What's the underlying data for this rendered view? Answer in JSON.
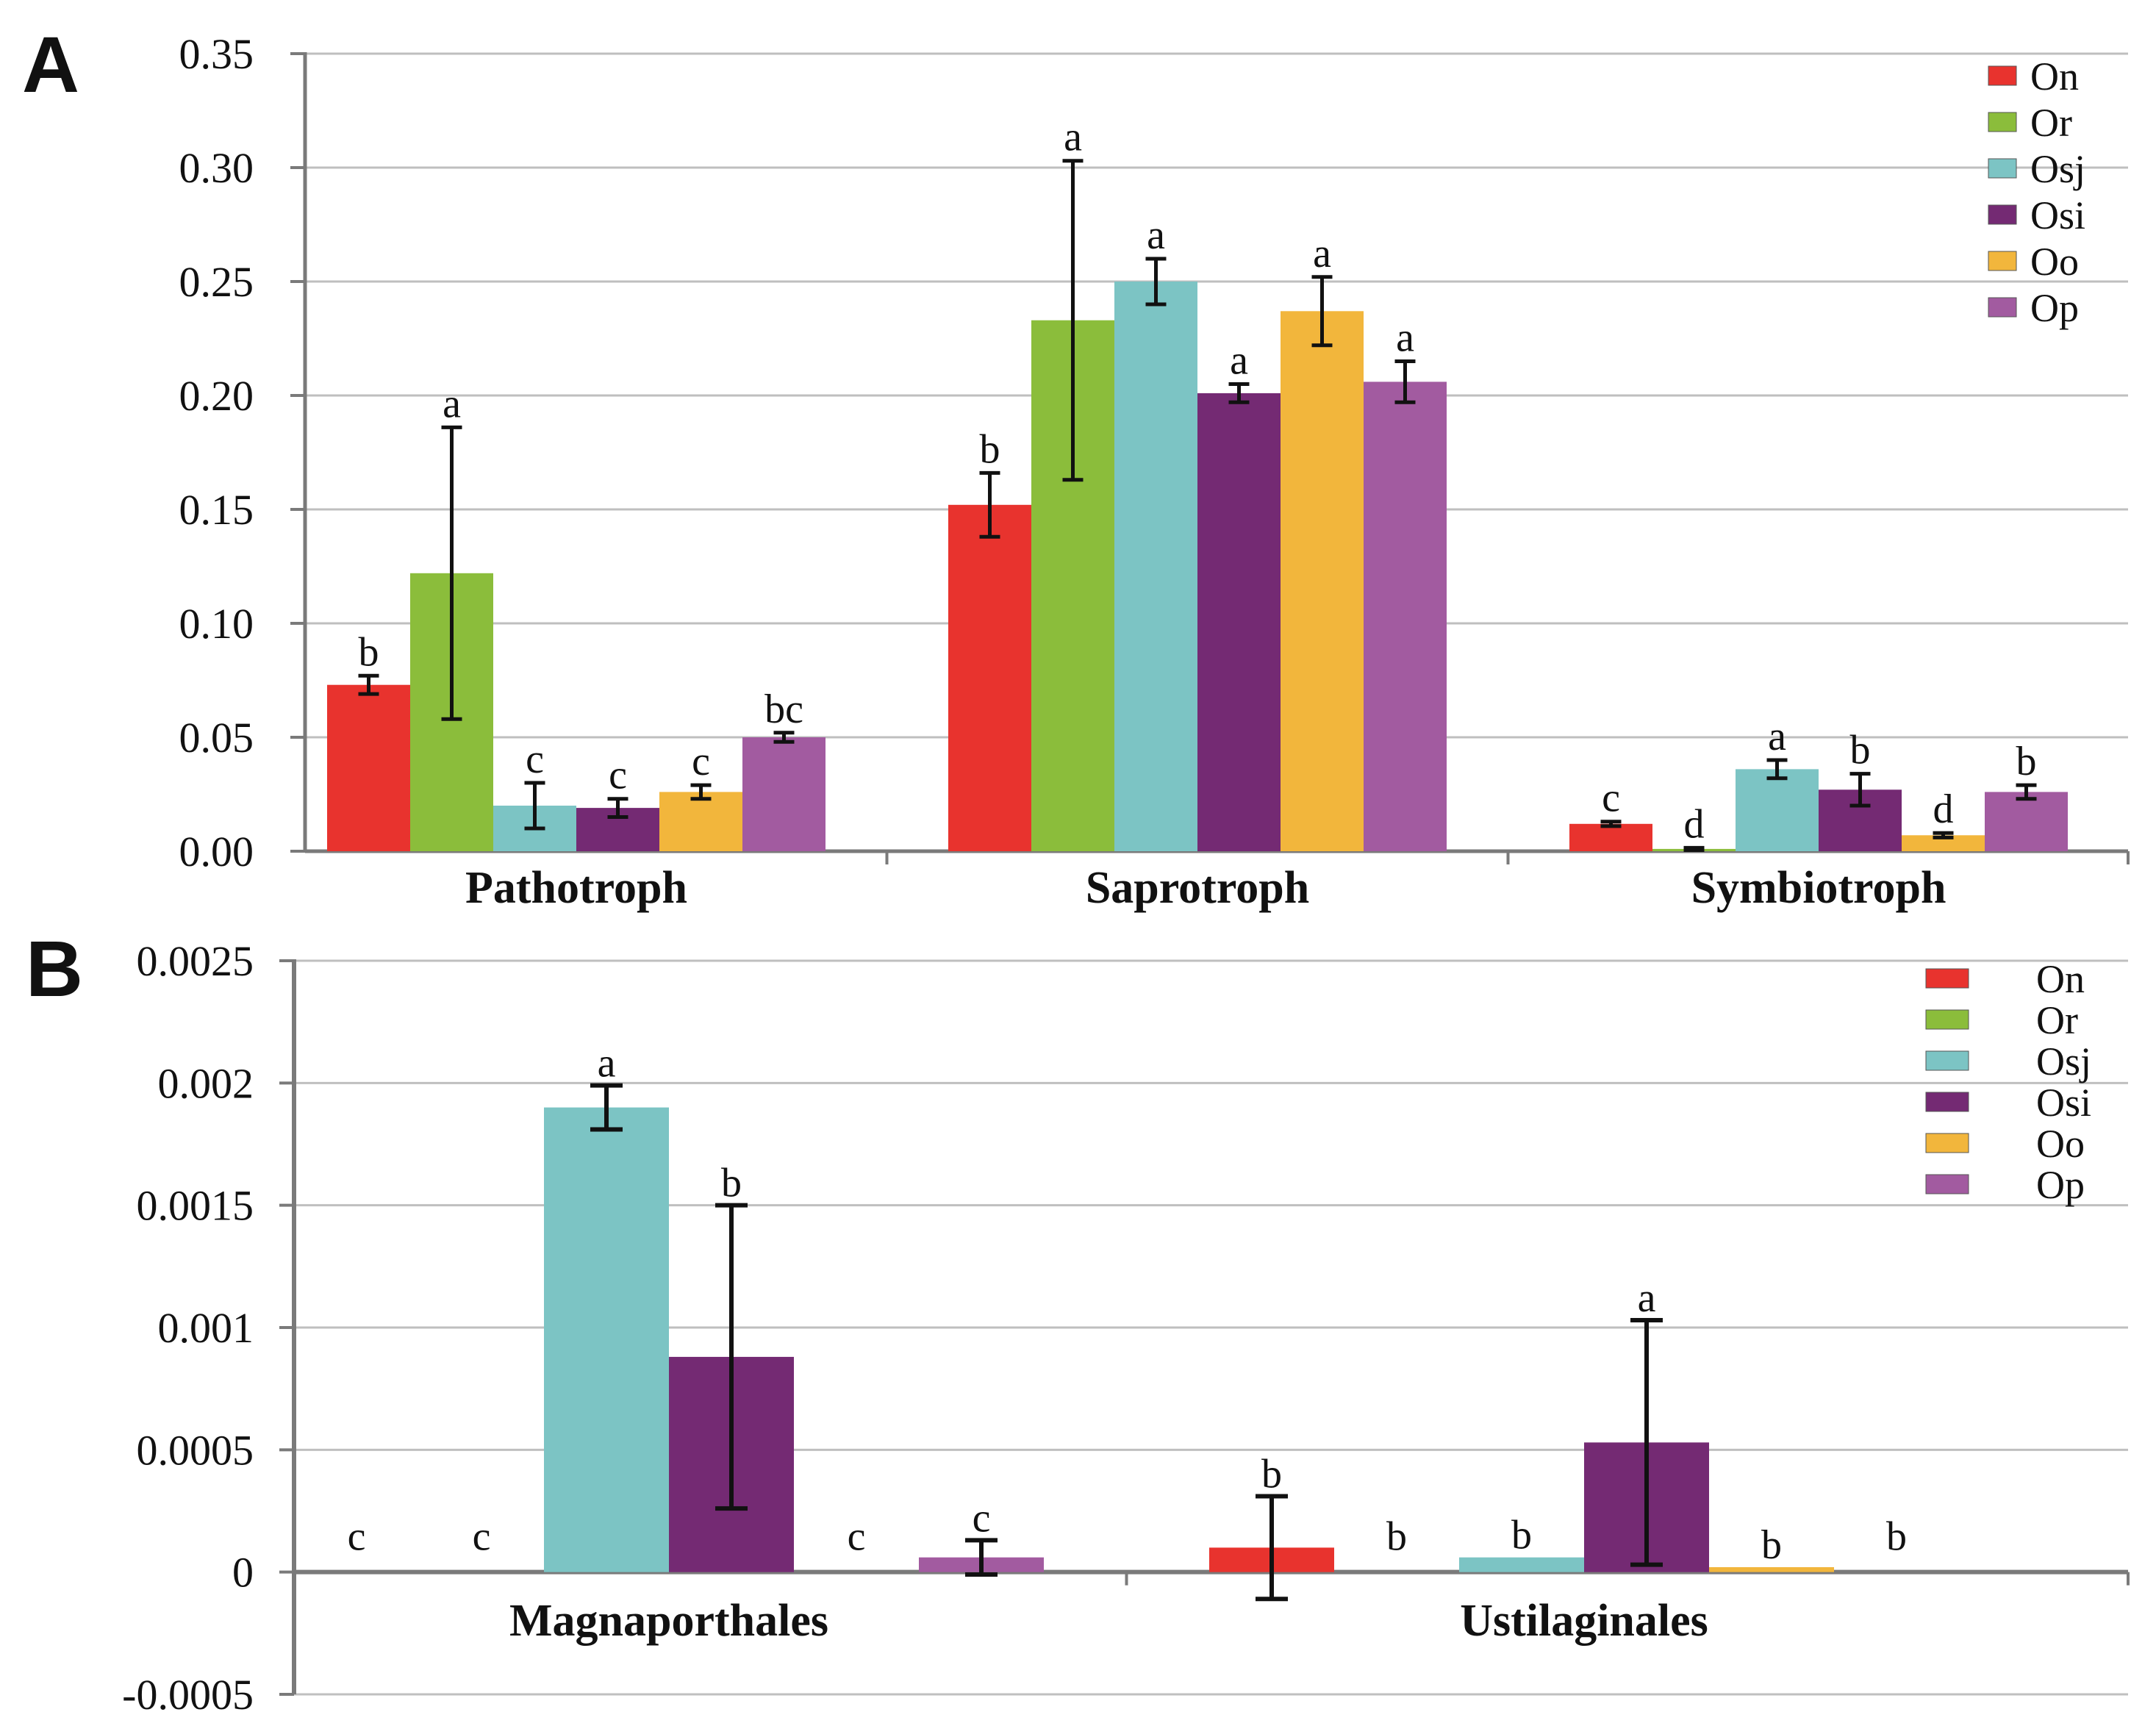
{
  "colors": {
    "On": "#e8332e",
    "Or": "#8bbd3b",
    "Osj": "#7cc4c4",
    "Osi": "#742a73",
    "Oo": "#f2b63c",
    "Op": "#a25ba0"
  },
  "chart_data": [
    {
      "panel_label": "A",
      "type": "bar",
      "categories": [
        "Pathotroph",
        "Saprotroph",
        "Symbiotroph"
      ],
      "ylim": [
        0,
        0.35
      ],
      "yticks": [
        "0.00",
        "0.05",
        "0.10",
        "0.15",
        "0.20",
        "0.25",
        "0.30",
        "0.35"
      ],
      "grid": true,
      "legend": "top-right",
      "series": [
        {
          "name": "On",
          "values": [
            0.073,
            0.152,
            0.012
          ],
          "errors": [
            0.004,
            0.014,
            0.001
          ],
          "letters": [
            "b",
            "b",
            "c"
          ]
        },
        {
          "name": "Or",
          "values": [
            0.122,
            0.233,
            0.001
          ],
          "errors": [
            0.064,
            0.07,
            0.0005
          ],
          "letters": [
            "a",
            "a",
            "d"
          ]
        },
        {
          "name": "Osj",
          "values": [
            0.02,
            0.25,
            0.036
          ],
          "errors": [
            0.01,
            0.01,
            0.004
          ],
          "letters": [
            "c",
            "a",
            "a"
          ]
        },
        {
          "name": "Osi",
          "values": [
            0.019,
            0.201,
            0.027
          ],
          "errors": [
            0.004,
            0.004,
            0.007
          ],
          "letters": [
            "c",
            "a",
            "b"
          ]
        },
        {
          "name": "Oo",
          "values": [
            0.026,
            0.237,
            0.007
          ],
          "errors": [
            0.003,
            0.015,
            0.001
          ],
          "letters": [
            "c",
            "a",
            "d"
          ]
        },
        {
          "name": "Op",
          "values": [
            0.05,
            0.206,
            0.026
          ],
          "errors": [
            0.002,
            0.009,
            0.003
          ],
          "letters": [
            "bc",
            "a",
            "b"
          ]
        }
      ]
    },
    {
      "panel_label": "B",
      "type": "bar",
      "categories": [
        "Magnaporthales",
        "Ustilaginales"
      ],
      "ylim": [
        -0.0005,
        0.0025
      ],
      "yticks": [
        "-0.0005",
        "0",
        "0.0005",
        "0.001",
        "0.0015",
        "0.002",
        "0.0025"
      ],
      "grid": true,
      "legend": "top-right",
      "series": [
        {
          "name": "On",
          "values": [
            0,
            0.0001
          ],
          "errors": [
            0,
            0.00021
          ],
          "letters": [
            "c",
            "b"
          ]
        },
        {
          "name": "Or",
          "values": [
            0,
            0
          ],
          "errors": [
            0,
            0
          ],
          "letters": [
            "c",
            "b"
          ]
        },
        {
          "name": "Osj",
          "values": [
            0.0019,
            6e-05
          ],
          "errors": [
            9e-05,
            0
          ],
          "letters": [
            "a",
            "b"
          ]
        },
        {
          "name": "Osi",
          "values": [
            0.00088,
            0.00053
          ],
          "errors": [
            0.00062,
            0.0005
          ],
          "letters": [
            "b",
            "a"
          ]
        },
        {
          "name": "Oo",
          "values": [
            0,
            2e-05
          ],
          "errors": [
            0,
            0
          ],
          "letters": [
            "c",
            "b"
          ]
        },
        {
          "name": "Op",
          "values": [
            6e-05,
            0
          ],
          "errors": [
            7e-05,
            0
          ],
          "letters": [
            "c",
            "b"
          ]
        }
      ]
    }
  ]
}
